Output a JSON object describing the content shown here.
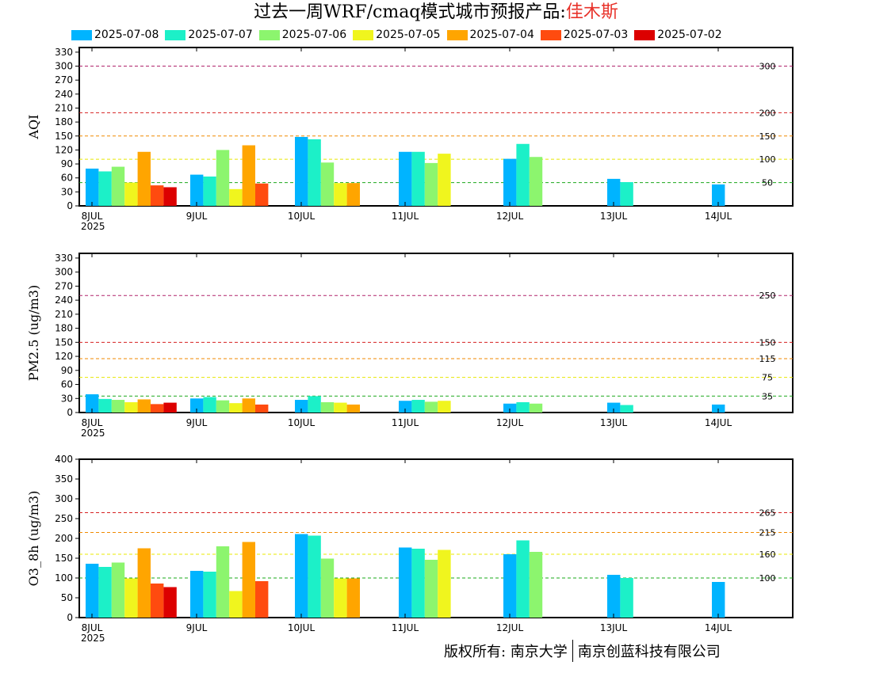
{
  "header": {
    "title_prefix": "过去一周WRF/cmaq模式城市预报产品:",
    "city": "佳木斯"
  },
  "legend": [
    {
      "label": "2025-07-08",
      "color": "#00b4ff"
    },
    {
      "label": "2025-07-07",
      "color": "#1cf0c8"
    },
    {
      "label": "2025-07-06",
      "color": "#8cf56e"
    },
    {
      "label": "2025-07-05",
      "color": "#f0f51e"
    },
    {
      "label": "2025-07-04",
      "color": "#ffa500"
    },
    {
      "label": "2025-07-03",
      "color": "#ff4b0f"
    },
    {
      "label": "2025-07-02",
      "color": "#dc0000"
    }
  ],
  "footer": {
    "left": "版权所有: 南京大学",
    "right": "南京创蓝科技有限公司"
  },
  "chart_data": [
    {
      "type": "bar",
      "ylabel": "AQI",
      "ylim": [
        0,
        340
      ],
      "yticks": [
        0,
        30,
        60,
        90,
        120,
        150,
        180,
        210,
        240,
        270,
        300,
        330
      ],
      "x_labels": [
        "8JUL\n2025",
        "9JUL",
        "10JUL",
        "11JUL",
        "12JUL",
        "13JUL",
        "14JUL"
      ],
      "series_names": [
        "2025-07-08",
        "2025-07-07",
        "2025-07-06",
        "2025-07-05",
        "2025-07-04",
        "2025-07-03",
        "2025-07-02"
      ],
      "groups": [
        [
          80,
          74,
          84,
          50,
          116,
          44,
          40
        ],
        [
          67,
          63,
          120,
          36,
          130,
          48,
          null
        ],
        [
          148,
          143,
          93,
          49,
          49,
          null,
          null
        ],
        [
          116,
          116,
          92,
          112,
          null,
          null,
          null
        ],
        [
          101,
          133,
          105,
          null,
          null,
          null,
          null
        ],
        [
          58,
          51,
          null,
          null,
          null,
          null,
          null
        ],
        [
          46,
          null,
          null,
          null,
          null,
          null,
          null
        ]
      ],
      "thresholds": [
        {
          "value": 300,
          "color": "#b0246b",
          "label": "300"
        },
        {
          "value": 200,
          "color": "#d62020",
          "label": "200"
        },
        {
          "value": 150,
          "color": "#f08a00",
          "label": "150"
        },
        {
          "value": 100,
          "color": "#e8e800",
          "label": "100"
        },
        {
          "value": 50,
          "color": "#1aa81a",
          "label": "50"
        }
      ]
    },
    {
      "type": "bar",
      "ylabel": "PM2.5 (ug/m3)",
      "ylim": [
        0,
        340
      ],
      "yticks": [
        0,
        30,
        60,
        90,
        120,
        150,
        180,
        210,
        240,
        270,
        300,
        330
      ],
      "x_labels": [
        "8JUL\n2025",
        "9JUL",
        "10JUL",
        "11JUL",
        "12JUL",
        "13JUL",
        "14JUL"
      ],
      "series_names": [
        "2025-07-08",
        "2025-07-07",
        "2025-07-06",
        "2025-07-05",
        "2025-07-04",
        "2025-07-03",
        "2025-07-02"
      ],
      "groups": [
        [
          39,
          29,
          27,
          22,
          28,
          18,
          21
        ],
        [
          30,
          33,
          26,
          20,
          30,
          17,
          null
        ],
        [
          27,
          35,
          22,
          21,
          17,
          null,
          null
        ],
        [
          25,
          27,
          23,
          25,
          null,
          null,
          null
        ],
        [
          19,
          22,
          19,
          null,
          null,
          null,
          null
        ],
        [
          21,
          16,
          null,
          null,
          null,
          null,
          null
        ],
        [
          17,
          null,
          null,
          null,
          null,
          null,
          null
        ]
      ],
      "thresholds": [
        {
          "value": 250,
          "color": "#b0246b",
          "label": "250"
        },
        {
          "value": 150,
          "color": "#d62020",
          "label": "150"
        },
        {
          "value": 115,
          "color": "#f08a00",
          "label": "115"
        },
        {
          "value": 75,
          "color": "#e8e800",
          "label": "75"
        },
        {
          "value": 35,
          "color": "#1aa81a",
          "label": "35"
        }
      ]
    },
    {
      "type": "bar",
      "ylabel": "O3_8h (ug/m3)",
      "ylim": [
        0,
        400
      ],
      "yticks": [
        0,
        50,
        100,
        150,
        200,
        250,
        300,
        350,
        400
      ],
      "x_labels": [
        "8JUL\n2025",
        "9JUL",
        "10JUL",
        "11JUL",
        "12JUL",
        "13JUL",
        "14JUL"
      ],
      "series_names": [
        "2025-07-08",
        "2025-07-07",
        "2025-07-06",
        "2025-07-05",
        "2025-07-04",
        "2025-07-03",
        "2025-07-02"
      ],
      "groups": [
        [
          136,
          128,
          139,
          99,
          175,
          86,
          77
        ],
        [
          118,
          116,
          180,
          67,
          191,
          92,
          null
        ],
        [
          211,
          207,
          149,
          99,
          99,
          null,
          null
        ],
        [
          177,
          174,
          146,
          171,
          null,
          null,
          null
        ],
        [
          160,
          195,
          166,
          null,
          null,
          null,
          null
        ],
        [
          108,
          100,
          null,
          null,
          null,
          null,
          null
        ],
        [
          90,
          null,
          null,
          null,
          null,
          null,
          null
        ]
      ],
      "thresholds": [
        {
          "value": 265,
          "color": "#d62020",
          "label": "265"
        },
        {
          "value": 215,
          "color": "#f08a00",
          "label": "215"
        },
        {
          "value": 160,
          "color": "#e8e800",
          "label": "160"
        },
        {
          "value": 100,
          "color": "#1aa81a",
          "label": "100"
        }
      ]
    }
  ]
}
